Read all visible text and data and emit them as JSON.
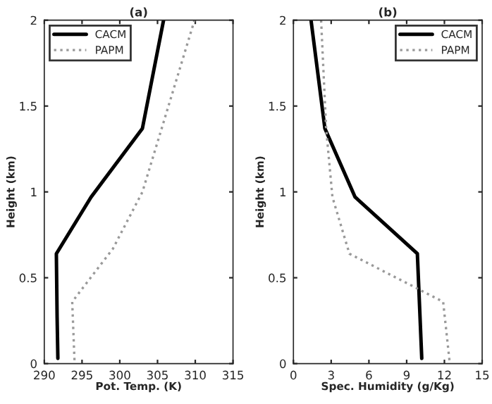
{
  "chart_data": [
    {
      "type": "line",
      "title": "(a)",
      "xlabel": "Pot. Temp. (K)",
      "ylabel": "Height (km)",
      "xlim": [
        290,
        315
      ],
      "xticks": [
        290,
        295,
        300,
        305,
        310,
        315
      ],
      "ylim": [
        0,
        2
      ],
      "yticks": [
        0,
        0.5,
        1,
        1.5,
        2
      ],
      "legend": "top left",
      "grid": false,
      "series": [
        {
          "name": "CACM",
          "color": "#000000",
          "line_style": "solid",
          "x": [
            291.8,
            291.7,
            291.6,
            296.2,
            303.0,
            305.8
          ],
          "values": [
            0.03,
            0.27,
            0.64,
            0.97,
            1.37,
            2.0
          ]
        },
        {
          "name": "PAPM",
          "color": "#999999",
          "line_style": "dotted",
          "x": [
            294.0,
            293.7,
            299.1,
            303.0,
            309.9
          ],
          "values": [
            0.02,
            0.36,
            0.67,
            1.0,
            2.0
          ]
        }
      ]
    },
    {
      "type": "line",
      "title": "(b)",
      "xlabel": "Spec. Humidity (g/Kg)",
      "ylabel": "Height (km)",
      "xlim": [
        0,
        15
      ],
      "xticks": [
        0,
        3,
        6,
        9,
        12,
        15
      ],
      "ylim": [
        0,
        2
      ],
      "yticks": [
        0,
        0.5,
        1,
        1.5,
        2
      ],
      "legend": "top right",
      "grid": false,
      "series": [
        {
          "name": "CACM",
          "color": "#000000",
          "line_style": "solid",
          "x": [
            10.2,
            9.85,
            4.9,
            2.5,
            1.4
          ],
          "values": [
            0.03,
            0.64,
            0.97,
            1.37,
            2.0
          ]
        },
        {
          "name": "PAPM",
          "color": "#999999",
          "line_style": "dotted",
          "x": [
            12.4,
            11.9,
            4.45,
            3.1,
            2.6,
            2.2
          ],
          "values": [
            0.02,
            0.36,
            0.64,
            0.97,
            1.37,
            2.0
          ]
        }
      ]
    }
  ]
}
